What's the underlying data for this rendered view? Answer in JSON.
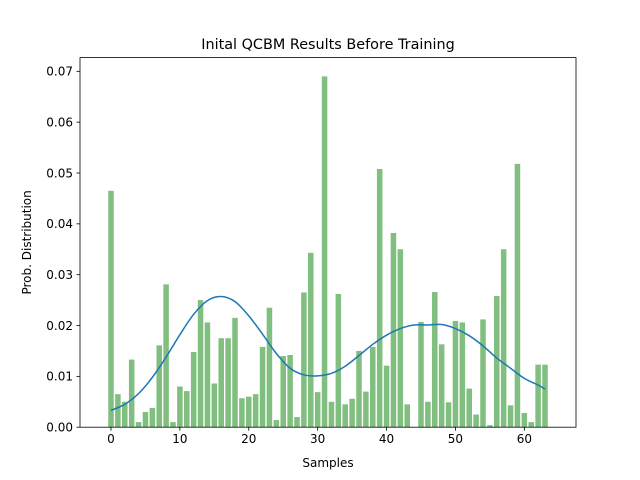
{
  "chart_data": {
    "type": "bar",
    "title": "Inital QCBM Results Before Training",
    "xlabel": "Samples",
    "ylabel": "Prob. Distribution",
    "xlim": [
      -4.5,
      67.5
    ],
    "ylim": [
      0,
      0.0727
    ],
    "xticks": [
      0,
      10,
      20,
      30,
      40,
      50,
      60
    ],
    "xtick_labels": [
      "0",
      "10",
      "20",
      "30",
      "40",
      "50",
      "60"
    ],
    "yticks": [
      0,
      0.01,
      0.02,
      0.03,
      0.04,
      0.05,
      0.06,
      0.07
    ],
    "ytick_labels": [
      "0.00",
      "0.01",
      "0.02",
      "0.03",
      "0.04",
      "0.05",
      "0.06",
      "0.07"
    ],
    "grid": false,
    "bar_color": "#80bf80",
    "line_color": "#1f77b4",
    "series": [
      {
        "type": "bar",
        "x": [
          0,
          1,
          2,
          3,
          4,
          5,
          6,
          7,
          8,
          9,
          10,
          11,
          12,
          13,
          14,
          15,
          16,
          17,
          18,
          19,
          20,
          21,
          22,
          23,
          24,
          25,
          26,
          27,
          28,
          29,
          30,
          31,
          32,
          33,
          34,
          35,
          36,
          37,
          38,
          39,
          40,
          41,
          42,
          43,
          44,
          45,
          46,
          47,
          48,
          49,
          50,
          51,
          52,
          53,
          54,
          55,
          56,
          57,
          58,
          59,
          60,
          61,
          62,
          63
        ],
        "values": [
          0.0465,
          0.0065,
          0.005,
          0.0133,
          0.001,
          0.003,
          0.0038,
          0.0161,
          0.0281,
          0.001,
          0.008,
          0.0071,
          0.0148,
          0.025,
          0.0206,
          0.0086,
          0.0175,
          0.0175,
          0.0215,
          0.0057,
          0.006,
          0.0065,
          0.0158,
          0.0235,
          0.0014,
          0.014,
          0.0142,
          0.002,
          0.0265,
          0.0343,
          0.0069,
          0.069,
          0.005,
          0.0262,
          0.0045,
          0.0056,
          0.015,
          0.007,
          0.0158,
          0.0508,
          0.0121,
          0.0382,
          0.035,
          0.0045,
          0.0,
          0.0207,
          0.005,
          0.0266,
          0.0163,
          0.0049,
          0.0209,
          0.0206,
          0.0076,
          0.0025,
          0.0212,
          0.0004,
          0.0258,
          0.035,
          0.0043,
          0.0518,
          0.0028,
          0.001,
          0.0123,
          0.0123
        ]
      },
      {
        "type": "line",
        "x": [
          0,
          2,
          4,
          6,
          8,
          10,
          12,
          14,
          16,
          18,
          20,
          22,
          24,
          26,
          28,
          30,
          32,
          34,
          36,
          38,
          40,
          42,
          44,
          46,
          48,
          50,
          52,
          54,
          56,
          58,
          60,
          62,
          63
        ],
        "values": [
          0.0033,
          0.0045,
          0.0066,
          0.0098,
          0.0138,
          0.0182,
          0.0222,
          0.0249,
          0.0257,
          0.0247,
          0.0219,
          0.0183,
          0.0145,
          0.0116,
          0.0103,
          0.0101,
          0.0106,
          0.012,
          0.0141,
          0.0163,
          0.0181,
          0.0194,
          0.0201,
          0.0201,
          0.0202,
          0.0194,
          0.018,
          0.016,
          0.0136,
          0.0116,
          0.0096,
          0.0083,
          0.0075
        ]
      }
    ]
  }
}
